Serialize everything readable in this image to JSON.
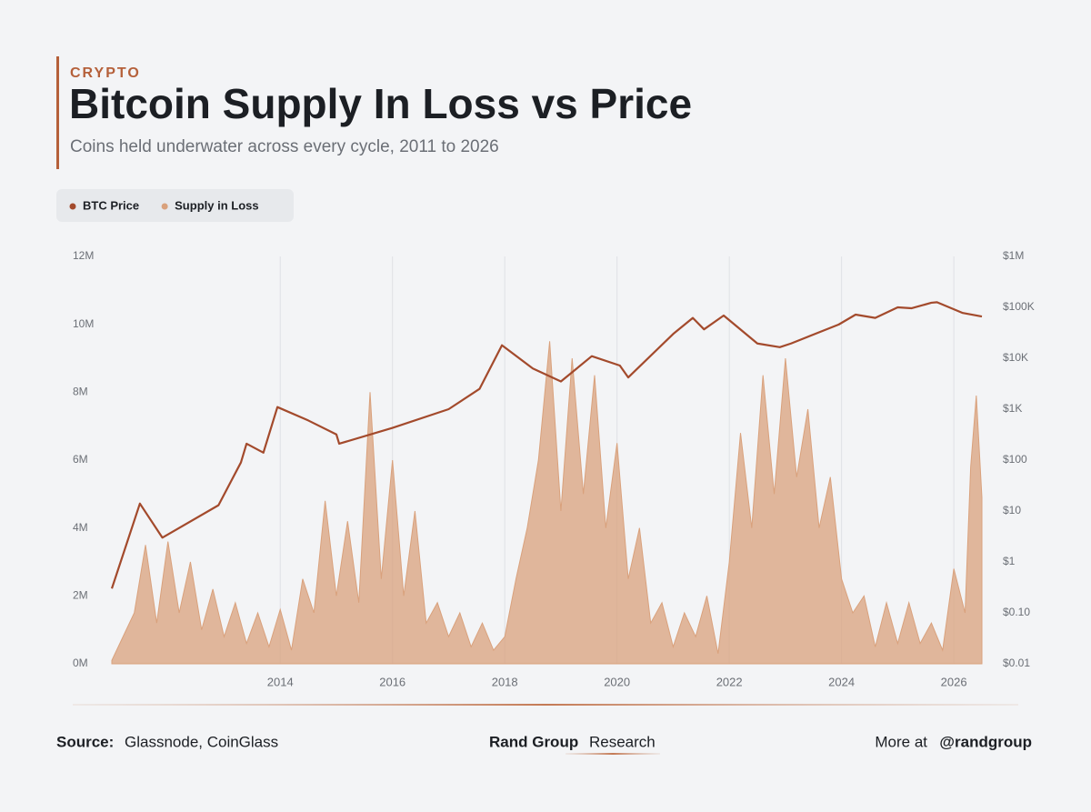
{
  "header": {
    "eyebrow": "CRYPTO"
  },
  "chart_data": {
    "type": "area-line",
    "title": "Bitcoin Supply In Loss vs Price",
    "subtitle": "Coins held underwater across every cycle, 2011 to 2026",
    "xlim": [
      2011,
      2026.5
    ],
    "xticks": [
      2014,
      2016,
      2018,
      2020,
      2022,
      2024,
      2026
    ],
    "ylim": [
      0,
      12
    ],
    "yticks": [
      {
        "value": 0,
        "label": "0M"
      },
      {
        "value": 2,
        "label": "2M"
      },
      {
        "value": 4,
        "label": "4M"
      },
      {
        "value": 6,
        "label": "6M"
      },
      {
        "value": 8,
        "label": "8M"
      },
      {
        "value": 10,
        "label": "10M"
      },
      {
        "value": 12,
        "label": "12M"
      }
    ],
    "y2lim": [
      0.01,
      1000000
    ],
    "y2scale": "log",
    "y2ticks": [
      {
        "value": 0.01,
        "label": "$0.01"
      },
      {
        "value": 0.1,
        "label": "$0.10"
      },
      {
        "value": 1,
        "label": "$1"
      },
      {
        "value": 10,
        "label": "$10"
      },
      {
        "value": 100,
        "label": "$100"
      },
      {
        "value": 1000,
        "label": "$1K"
      },
      {
        "value": 10000,
        "label": "$10K"
      },
      {
        "value": 100000,
        "label": "$100K"
      },
      {
        "value": 1000000,
        "label": "$1M"
      }
    ],
    "grid": "x",
    "series": [
      {
        "name": "BTC Price",
        "type": "line",
        "axis": "y2",
        "color": "#a34a2c",
        "x": [
          2011.0,
          2011.5,
          2011.9,
          2012.9,
          2013.3,
          2013.4,
          2013.7,
          2013.95,
          2014.5,
          2015.0,
          2015.05,
          2016.0,
          2017.0,
          2017.55,
          2017.95,
          2018.5,
          2019.0,
          2019.55,
          2020.05,
          2020.2,
          2021.0,
          2021.35,
          2021.55,
          2021.9,
          2022.5,
          2022.9,
          2023.1,
          2023.95,
          2024.25,
          2024.6,
          2025.0,
          2025.25,
          2025.6,
          2025.7,
          2026.15,
          2026.5
        ],
        "values": [
          0.3,
          14,
          3,
          13,
          90,
          210,
          140,
          1100,
          600,
          320,
          210,
          430,
          1000,
          2500,
          18000,
          6300,
          3500,
          11000,
          7200,
          4200,
          30000,
          62000,
          37000,
          69000,
          19500,
          16500,
          19500,
          46000,
          72000,
          62000,
          100000,
          96000,
          123000,
          126000,
          78000,
          66000
        ]
      },
      {
        "name": "Supply in Loss",
        "type": "area",
        "axis": "y",
        "color": "#d9a17c",
        "x": [
          2011.0,
          2011.2,
          2011.4,
          2011.6,
          2011.8,
          2012.0,
          2012.2,
          2012.4,
          2012.6,
          2012.8,
          2013.0,
          2013.2,
          2013.4,
          2013.6,
          2013.8,
          2014.0,
          2014.2,
          2014.4,
          2014.6,
          2014.8,
          2015.0,
          2015.2,
          2015.4,
          2015.6,
          2015.8,
          2016.0,
          2016.2,
          2016.4,
          2016.6,
          2016.8,
          2017.0,
          2017.2,
          2017.4,
          2017.6,
          2017.8,
          2018.0,
          2018.2,
          2018.4,
          2018.6,
          2018.8,
          2019.0,
          2019.2,
          2019.4,
          2019.6,
          2019.8,
          2020.0,
          2020.2,
          2020.4,
          2020.6,
          2020.8,
          2021.0,
          2021.2,
          2021.4,
          2021.6,
          2021.8,
          2022.0,
          2022.2,
          2022.4,
          2022.6,
          2022.8,
          2023.0,
          2023.2,
          2023.4,
          2023.6,
          2023.8,
          2024.0,
          2024.2,
          2024.4,
          2024.6,
          2024.8,
          2025.0,
          2025.2,
          2025.4,
          2025.6,
          2025.8,
          2026.0,
          2026.2,
          2026.3,
          2026.4,
          2026.5
        ],
        "values": [
          0.1,
          0.8,
          1.5,
          3.5,
          1.2,
          3.6,
          1.5,
          3.0,
          1.0,
          2.2,
          0.8,
          1.8,
          0.6,
          1.5,
          0.5,
          1.6,
          0.4,
          2.5,
          1.5,
          4.8,
          2.0,
          4.2,
          1.8,
          8.0,
          2.5,
          6.0,
          2.0,
          4.5,
          1.2,
          1.8,
          0.8,
          1.5,
          0.5,
          1.2,
          0.4,
          0.8,
          2.5,
          4.0,
          6.0,
          9.5,
          4.5,
          9.0,
          5.0,
          8.5,
          4.0,
          6.5,
          2.5,
          4.0,
          1.2,
          1.8,
          0.5,
          1.5,
          0.8,
          2.0,
          0.3,
          3.0,
          6.8,
          4.0,
          8.5,
          5.0,
          9.0,
          5.5,
          7.5,
          4.0,
          5.5,
          2.5,
          1.5,
          2.0,
          0.5,
          1.8,
          0.6,
          1.8,
          0.6,
          1.2,
          0.4,
          2.8,
          1.5,
          5.8,
          7.9,
          4.9
        ]
      }
    ]
  },
  "footer": {
    "source_label": "Source:",
    "source": "Glassnode, CoinGlass",
    "brand": "Rand Group",
    "brand_suffix": "Research",
    "more_label": "More at",
    "handle": "@randgroup"
  }
}
